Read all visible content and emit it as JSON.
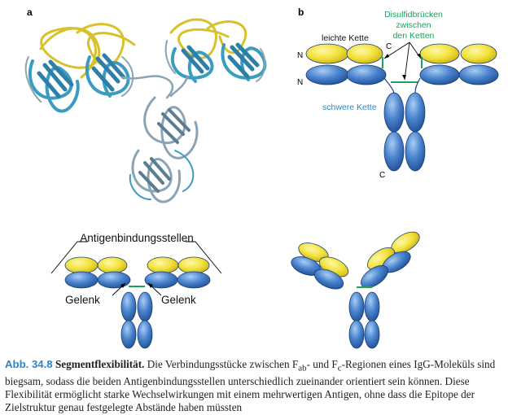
{
  "panels": {
    "a": "a",
    "b": "b"
  },
  "panel_b": {
    "n_top": "N",
    "n_bottom": "N",
    "c_light": "C",
    "c_heavy": "C",
    "light_chain": "leichte Kette",
    "heavy_chain": "schwere Kette",
    "disulfide_line1": "Disulfidbrücken",
    "disulfide_line2": "zwischen",
    "disulfide_line3": "den Ketten"
  },
  "panel_c": {
    "antigen_sites": "Antigenbindungsstellen",
    "hinge_left": "Gelenk",
    "hinge_right": "Gelenk"
  },
  "caption": {
    "label": "Abb. 34.8",
    "title": "Segmentflexibilität.",
    "text_1": " Die Verbindungsstücke zwischen F",
    "sub_ab": "ab",
    "text_2": "- und F",
    "sub_c": "c",
    "text_3": "-Regionen eines IgG-Moleküls sind biegsam, sodass die beiden Antigenbindungsstellen unterschiedlich zueinander orientiert sein können. Diese Flexibilität ermöglicht starke Wechselwirkungen mit einem mehrwertigen Antigen, ohne dass die Epitope der Zielstruktur genau festgelegte Abstände haben müssten"
  },
  "colors": {
    "light_chain": "#f2e23a",
    "heavy_chain": "#3f78c4",
    "disulfide": "#1aa35a",
    "heavy_label": "#2a86c8",
    "ribbon_blue": "#3a9cc0",
    "ribbon_yellow": "#d8c12a",
    "ribbon_grey": "#8aa3b5"
  }
}
